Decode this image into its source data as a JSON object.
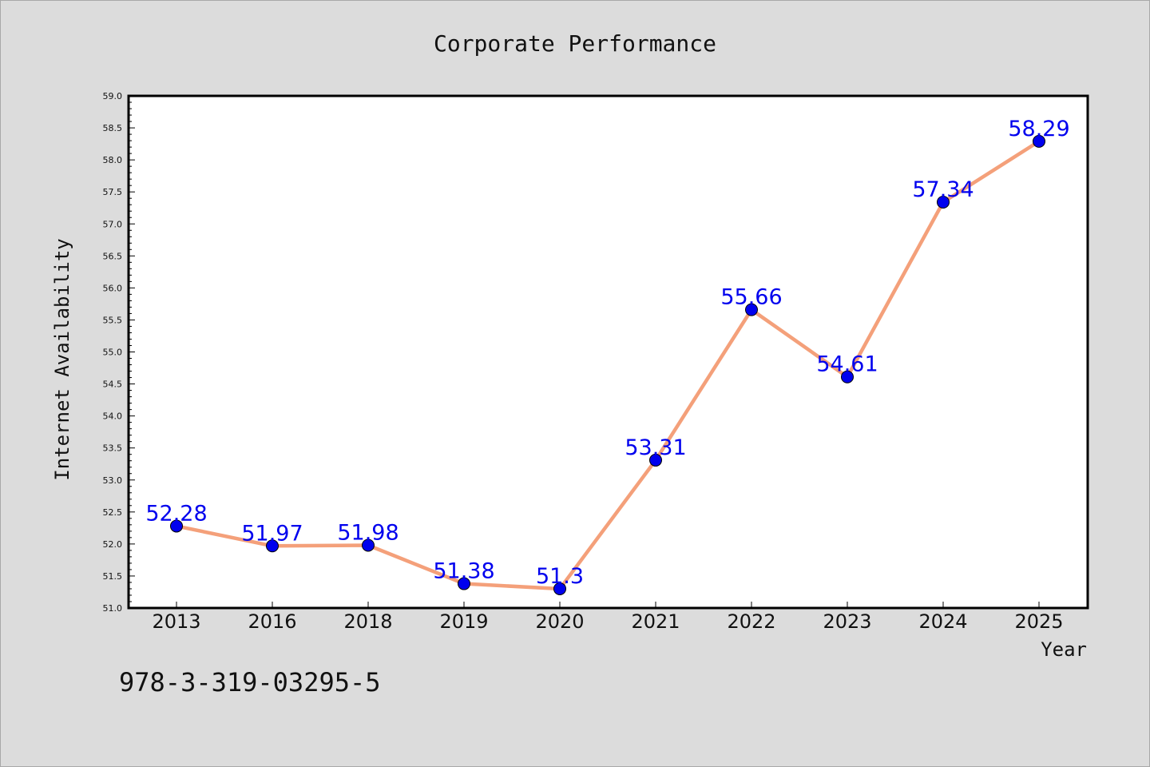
{
  "chart_data": {
    "type": "line",
    "title": "Corporate Performance",
    "xlabel": "Year",
    "ylabel": "Internet Availability",
    "categories": [
      "2013",
      "2016",
      "2018",
      "2019",
      "2020",
      "2021",
      "2022",
      "2023",
      "2024",
      "2025"
    ],
    "series": [
      {
        "values": [
          52.28,
          51.97,
          51.98,
          51.38,
          51.3,
          53.31,
          55.66,
          54.61,
          57.34,
          58.29
        ],
        "data_labels": [
          "52.28",
          "51.97",
          "51.98",
          "51.38",
          "51.3",
          "53.31",
          "55.66",
          "54.61",
          "57.34",
          "58.29"
        ],
        "line_color": "#f4a07a",
        "marker_color": "#0000ee"
      }
    ],
    "ylim": [
      51.0,
      59.0
    ],
    "yticks": [
      "51.0",
      "51.5",
      "52.0",
      "52.5",
      "53.0",
      "53.5",
      "54.0",
      "54.5",
      "55.0",
      "55.5",
      "56.0",
      "56.5",
      "57.0",
      "57.5",
      "58.0",
      "58.5",
      "59.0"
    ],
    "grid": false,
    "legend": "none",
    "label_color": "#0000ee"
  },
  "footer": {
    "isbn": "978-3-319-03295-5"
  }
}
